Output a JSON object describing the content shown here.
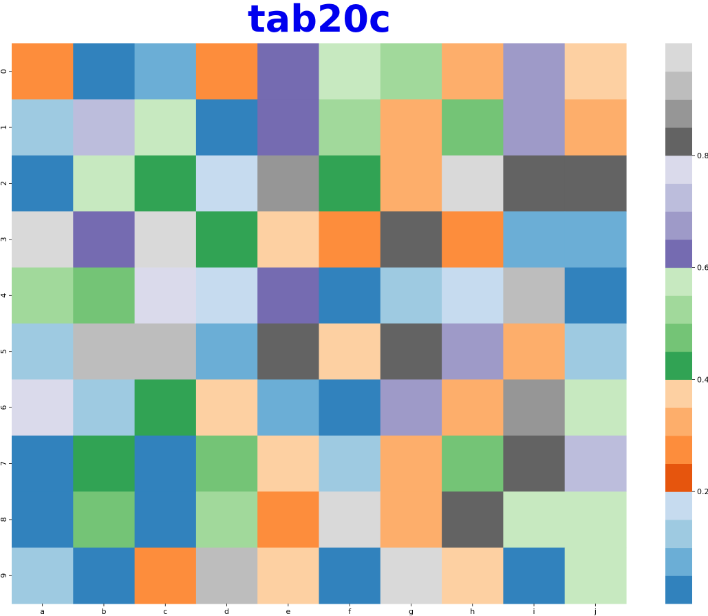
{
  "chart_data": {
    "type": "heatmap",
    "title": "tab20c",
    "title_color": "#0000ee",
    "colormap": "tab20c",
    "x_categories": [
      "a",
      "b",
      "c",
      "d",
      "e",
      "f",
      "g",
      "h",
      "i",
      "j"
    ],
    "y_categories": [
      "0",
      "1",
      "2",
      "3",
      "4",
      "5",
      "6",
      "7",
      "8",
      "9"
    ],
    "values": [
      [
        0.27,
        0.03,
        0.08,
        0.28,
        0.63,
        0.58,
        0.53,
        0.33,
        0.68,
        0.38
      ],
      [
        0.13,
        0.73,
        0.58,
        0.03,
        0.63,
        0.53,
        0.33,
        0.48,
        0.68,
        0.33
      ],
      [
        0.03,
        0.58,
        0.43,
        0.18,
        0.88,
        0.43,
        0.33,
        0.98,
        0.83,
        0.83
      ],
      [
        0.98,
        0.63,
        0.98,
        0.43,
        0.38,
        0.28,
        0.83,
        0.27,
        0.08,
        0.08
      ],
      [
        0.53,
        0.48,
        0.78,
        0.18,
        0.63,
        0.03,
        0.13,
        0.18,
        0.93,
        0.03
      ],
      [
        0.13,
        0.93,
        0.93,
        0.08,
        0.83,
        0.38,
        0.83,
        0.68,
        0.33,
        0.13
      ],
      [
        0.78,
        0.13,
        0.43,
        0.38,
        0.08,
        0.03,
        0.68,
        0.33,
        0.88,
        0.58
      ],
      [
        0.03,
        0.43,
        0.03,
        0.48,
        0.38,
        0.13,
        0.33,
        0.48,
        0.83,
        0.73
      ],
      [
        0.03,
        0.48,
        0.03,
        0.53,
        0.27,
        0.98,
        0.33,
        0.83,
        0.58,
        0.58
      ],
      [
        0.13,
        0.03,
        0.27,
        0.93,
        0.38,
        0.03,
        0.98,
        0.38,
        0.03,
        0.58
      ]
    ],
    "colorbar": {
      "range": [
        0.0,
        1.0
      ],
      "ticks": [
        0.2,
        0.4,
        0.6,
        0.8
      ],
      "tick_labels": [
        "0.2",
        "0.4",
        "0.6",
        "0.8"
      ]
    },
    "palette": [
      "#3182bd",
      "#6baed6",
      "#9ecae1",
      "#c6dbef",
      "#e6550d",
      "#fd8d3c",
      "#fdae6b",
      "#fdd0a2",
      "#31a354",
      "#74c476",
      "#a1d99b",
      "#c7e9c0",
      "#756bb1",
      "#9e9ac8",
      "#bcbddc",
      "#dadaeb",
      "#636363",
      "#969696",
      "#bdbdbd",
      "#d9d9d9"
    ]
  }
}
